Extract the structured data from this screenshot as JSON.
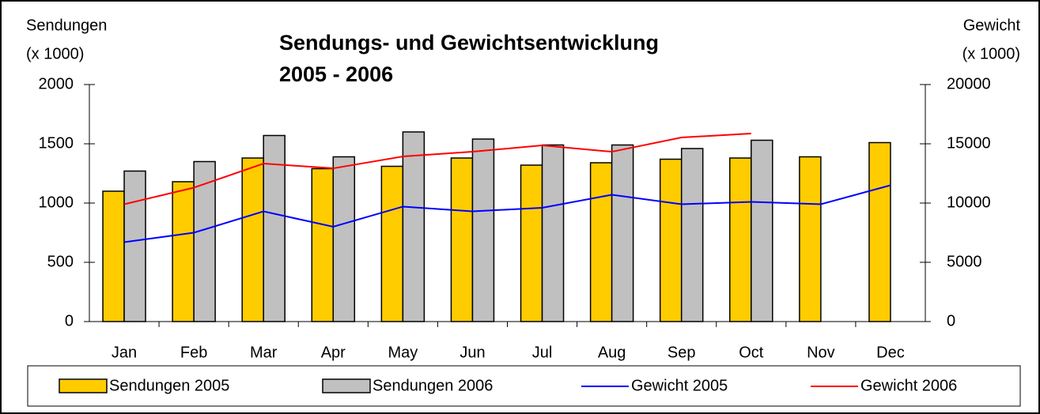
{
  "chart_data": {
    "type": "bar",
    "title": [
      "Sendungs- und Gewichtsentwicklung",
      "2005 - 2006"
    ],
    "ylabel": [
      "Sendungen",
      "(x 1000)"
    ],
    "y2label": [
      "Gewicht",
      "(x 1000)"
    ],
    "categories": [
      "Jan",
      "Feb",
      "Mar",
      "Apr",
      "May",
      "Jun",
      "Jul",
      "Aug",
      "Sep",
      "Oct",
      "Nov",
      "Dec"
    ],
    "ylim": [
      0,
      2000
    ],
    "yticks": [
      0,
      500,
      1000,
      1500,
      2000
    ],
    "y2lim": [
      0,
      20000
    ],
    "y2ticks": [
      0,
      5000,
      10000,
      15000,
      20000
    ],
    "grid": false,
    "legend": "bottom",
    "series": [
      {
        "name": "Sendungen 2005",
        "type": "bar",
        "color": "#ffcc00",
        "values": [
          1100,
          1180,
          1380,
          1290,
          1310,
          1380,
          1320,
          1340,
          1370,
          1380,
          1390,
          1510
        ]
      },
      {
        "name": "Sendungen 2006",
        "type": "bar",
        "color": "#c0c0c0",
        "values": [
          1270,
          1350,
          1570,
          1390,
          1600,
          1540,
          1490,
          1490,
          1460,
          1530,
          null,
          null
        ]
      },
      {
        "name": "Gewicht 2005",
        "type": "line",
        "axis": "y2",
        "color": "#0000ff",
        "values": [
          6700,
          7500,
          9300,
          8000,
          9700,
          9300,
          9600,
          10700,
          9900,
          10100,
          9900,
          11500
        ]
      },
      {
        "name": "Gewicht 2006",
        "type": "line",
        "axis": "y2",
        "color": "#ff0000",
        "values": [
          9900,
          11300,
          13330,
          12930,
          13930,
          14330,
          14870,
          14330,
          15530,
          15870,
          null,
          null
        ]
      }
    ]
  }
}
